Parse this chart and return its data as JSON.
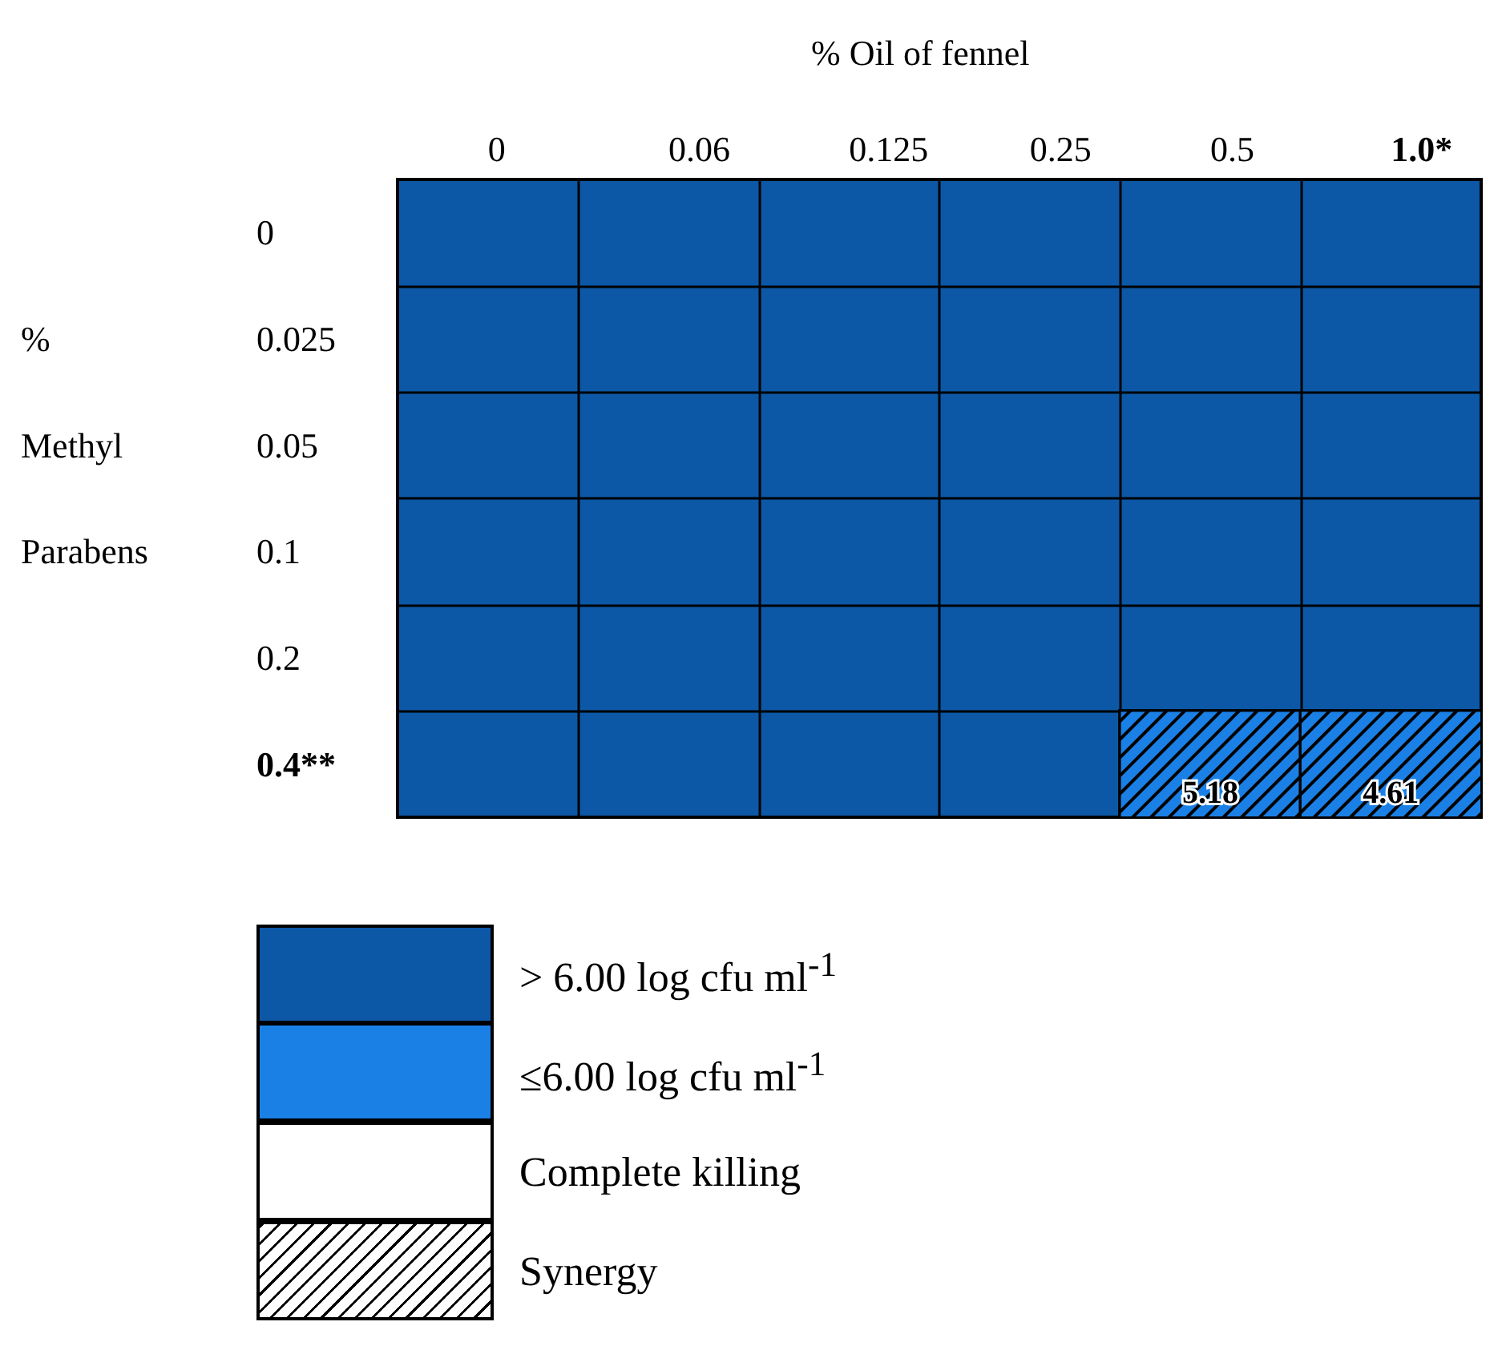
{
  "chart_data": {
    "type": "heatmap",
    "xlabel": "% Oil of fennel",
    "ylabel": "% Methyl Parabens",
    "categories": [
      "0",
      "0.06",
      "0.125",
      "0.25",
      "0.5",
      "1.0*"
    ],
    "y_categories": [
      "0",
      "0.025",
      "0.05",
      "0.1",
      "0.2",
      "0.4**"
    ],
    "cells": [
      [
        null,
        null,
        null,
        null,
        null,
        null
      ],
      [
        null,
        null,
        null,
        null,
        null,
        null
      ],
      [
        null,
        null,
        null,
        null,
        null,
        null
      ],
      [
        null,
        null,
        null,
        null,
        null,
        null
      ],
      [
        null,
        null,
        null,
        null,
        null,
        null
      ],
      [
        null,
        null,
        null,
        null,
        5.18,
        4.61
      ]
    ],
    "data_labels": true,
    "annotations": [
      "> 6.00 log cfu ml$^{-1}$",
      "≤6.00 log cfu ml$^{-1}$",
      "Complete killing",
      "Synergy"
    ],
    "colors": [
      "#0c58a6",
      "#1a80e6",
      "#ffffff",
      "#ffffff"
    ]
  }
}
